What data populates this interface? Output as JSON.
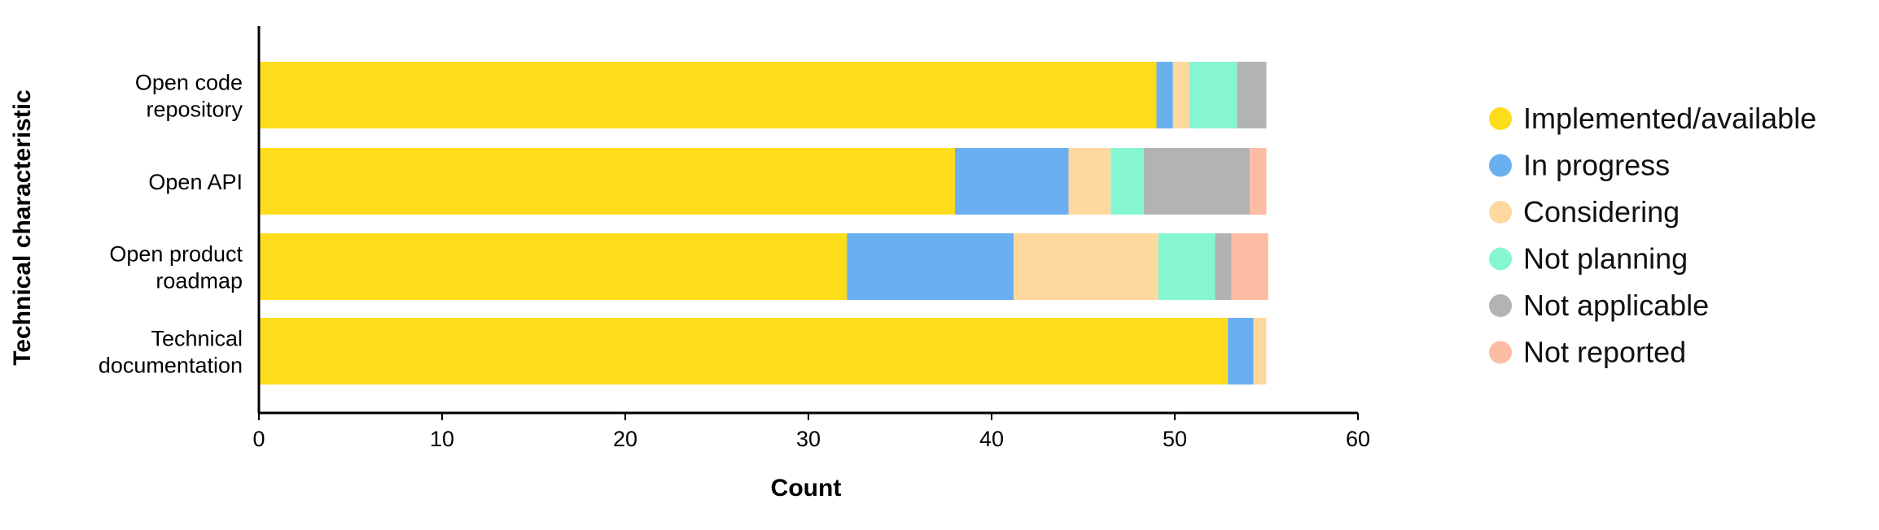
{
  "chart_data": {
    "type": "bar",
    "orientation": "horizontal",
    "stacked": true,
    "categories": [
      [
        "Open code",
        "repository"
      ],
      [
        "Open API"
      ],
      [
        "Open product",
        "roadmap"
      ],
      [
        "Technical",
        "documentation"
      ]
    ],
    "series": [
      {
        "name": "Implemented/available",
        "color": "#FDDD1B",
        "values": [
          49,
          38,
          32.1,
          52.9
        ]
      },
      {
        "name": "In progress",
        "color": "#6AB0F0",
        "values": [
          0.9,
          6.2,
          9.1,
          1.4
        ]
      },
      {
        "name": "Considering",
        "color": "#FDD9A0",
        "values": [
          0.9,
          2.3,
          7.9,
          0.7
        ]
      },
      {
        "name": "Not planning",
        "color": "#86F6D2",
        "values": [
          2.6,
          1.8,
          3.1,
          0
        ]
      },
      {
        "name": "Not applicable",
        "color": "#B3B3B1",
        "values": [
          1.6,
          5.8,
          0.9,
          0
        ]
      },
      {
        "name": "Not reported",
        "color": "#FDBCA4",
        "values": [
          0,
          0.9,
          2.0,
          0
        ]
      }
    ],
    "xlabel": "Count",
    "ylabel": "Technical characteristic",
    "xlim": [
      0,
      60
    ],
    "xticks": [
      0,
      10,
      20,
      30,
      40,
      50,
      60
    ],
    "grid": false,
    "legend_position": "right"
  }
}
